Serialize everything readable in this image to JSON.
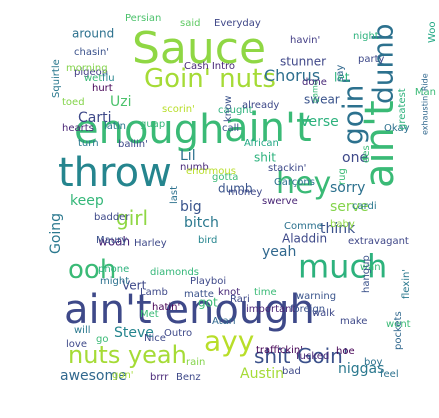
{
  "words": [
    {
      "t": "Sauce",
      "c": "#8fd744"
    },
    {
      "t": "enough",
      "c": "#3aba76"
    },
    {
      "t": "ain't",
      "c": "#3aba76"
    },
    {
      "t": "ain't",
      "c": "#3aba76"
    },
    {
      "t": "ain't enough",
      "c": "#3e4989"
    },
    {
      "t": "throw",
      "c": "#25858e"
    },
    {
      "t": "much",
      "c": "#2db27d"
    },
    {
      "t": "hey",
      "c": "#3aba76"
    },
    {
      "t": "Goin' nuts",
      "c": "#a5db36"
    },
    {
      "t": "goin'",
      "c": "#2c718e"
    },
    {
      "t": "dumb",
      "c": "#2c718e"
    },
    {
      "t": "nuts yeah",
      "c": "#a5db36"
    },
    {
      "t": "ayy",
      "c": "#b8de29"
    },
    {
      "t": "shit Goin'",
      "c": "#3b518b"
    },
    {
      "t": "ooh",
      "c": "#3aba76"
    },
    {
      "t": "girl",
      "c": "#8fd744"
    },
    {
      "t": "Chorus",
      "c": "#2e6f8e"
    },
    {
      "t": "stunner",
      "c": "#3f4788"
    },
    {
      "t": "let",
      "c": "#2db27d"
    },
    {
      "t": "swear",
      "c": "#3a548c"
    },
    {
      "t": "Uzi",
      "c": "#4cc26c"
    },
    {
      "t": "Carti",
      "c": "#3e4989"
    },
    {
      "t": "Verse",
      "c": "#2db27d"
    },
    {
      "t": "Lil",
      "c": "#2c718e"
    },
    {
      "t": "one",
      "c": "#3e4989"
    },
    {
      "t": "sorry",
      "c": "#2c718e"
    },
    {
      "t": "serve",
      "c": "#84d44b"
    },
    {
      "t": "think",
      "c": "#3b528b"
    },
    {
      "t": "yeah",
      "c": "#31688e"
    },
    {
      "t": "bitch",
      "c": "#2a788e"
    },
    {
      "t": "big",
      "c": "#3a548c"
    },
    {
      "t": "keep",
      "c": "#35b779"
    },
    {
      "t": "Going",
      "c": "#2a788e"
    },
    {
      "t": "woah",
      "c": "#482475"
    },
    {
      "t": "Vert",
      "c": "#3e4989"
    },
    {
      "t": "got",
      "c": "#3aba76"
    },
    {
      "t": "Steve",
      "c": "#25858e"
    },
    {
      "t": "Austin",
      "c": "#a5db36"
    },
    {
      "t": "niggas",
      "c": "#2a788e"
    },
    {
      "t": "awesome",
      "c": "#31688e"
    },
    {
      "t": "around",
      "c": "#2c718e"
    },
    {
      "t": "Persian",
      "c": "#4cc26c"
    },
    {
      "t": "said",
      "c": "#5ec962"
    },
    {
      "t": "Everyday",
      "c": "#3f4788"
    },
    {
      "t": "chasin'",
      "c": "#3b528b"
    },
    {
      "t": "havin'",
      "c": "#433e85"
    },
    {
      "t": "night",
      "c": "#2db27d"
    },
    {
      "t": "party",
      "c": "#3e4989"
    },
    {
      "t": "Woo",
      "c": "#22a884"
    },
    {
      "t": "pigeon",
      "c": "#433e85"
    },
    {
      "t": "flu",
      "c": "#25858e"
    },
    {
      "t": "Cash Intro",
      "c": "#482878"
    },
    {
      "t": "wet",
      "c": "#3aba76"
    },
    {
      "t": "hurt",
      "c": "#440154"
    },
    {
      "t": "morning",
      "c": "#84d44b"
    },
    {
      "t": "toed",
      "c": "#84d44b"
    },
    {
      "t": "Squirtle",
      "c": "#2a788e"
    },
    {
      "t": "hearts",
      "c": "#482475"
    },
    {
      "t": "latin",
      "c": "#2a788e"
    },
    {
      "t": "guap",
      "c": "#35b779"
    },
    {
      "t": "scorin'",
      "c": "#b8de29"
    },
    {
      "t": "caught",
      "c": "#2db27d"
    },
    {
      "t": "already",
      "c": "#3e4989"
    },
    {
      "t": "know",
      "c": "#3b528b"
    },
    {
      "t": "turn",
      "c": "#2a788e"
    },
    {
      "t": "ballin'",
      "c": "#3e4989"
    },
    {
      "t": "African",
      "c": "#22a884"
    },
    {
      "t": "shit",
      "c": "#2db27d"
    },
    {
      "t": "stackin'",
      "c": "#3e4989"
    },
    {
      "t": "call",
      "c": "#3b528b"
    },
    {
      "t": "Okay",
      "c": "#2c718e"
    },
    {
      "t": "Man",
      "c": "#3aba76"
    },
    {
      "t": "game",
      "c": "#3aba76"
    },
    {
      "t": "greatest",
      "c": "#2db27d"
    },
    {
      "t": "exhaustin' Ride",
      "c": "#31688e"
    },
    {
      "t": "done",
      "c": "#482878"
    },
    {
      "t": "say",
      "c": "#31688e"
    },
    {
      "t": "des",
      "c": "#3aba76"
    },
    {
      "t": "numb",
      "c": "#482878"
    },
    {
      "t": "gotta",
      "c": "#3aba76"
    },
    {
      "t": "enormous",
      "c": "#b8de29"
    },
    {
      "t": "Garçons",
      "c": "#2c718e"
    },
    {
      "t": "dumb",
      "c": "#3a548c"
    },
    {
      "t": "badder",
      "c": "#3e4989"
    },
    {
      "t": "Maury",
      "c": "#3b528b"
    },
    {
      "t": "Harley",
      "c": "#3e4989"
    },
    {
      "t": "bird",
      "c": "#25858e"
    },
    {
      "t": "money",
      "c": "#3e4989"
    },
    {
      "t": "swerve",
      "c": "#482475"
    },
    {
      "t": "cardi",
      "c": "#2a788e"
    },
    {
      "t": "rug",
      "c": "#3aba76"
    },
    {
      "t": "Comme",
      "c": "#2c718e"
    },
    {
      "t": "baby",
      "c": "#8fd744"
    },
    {
      "t": "Aladdin",
      "c": "#3e4989"
    },
    {
      "t": "extravagant",
      "c": "#3f4788"
    },
    {
      "t": "last",
      "c": "#2c718e"
    },
    {
      "t": "phone",
      "c": "#2db27d"
    },
    {
      "t": "diamonds",
      "c": "#35b779"
    },
    {
      "t": "Lamb",
      "c": "#3e4989"
    },
    {
      "t": "matte",
      "c": "#3b528b"
    },
    {
      "t": "knot",
      "c": "#482878"
    },
    {
      "t": "time",
      "c": "#3aba76"
    },
    {
      "t": "warning",
      "c": "#3a548c"
    },
    {
      "t": "wan'",
      "c": "#3aba76"
    },
    {
      "t": "flexin'",
      "c": "#2a788e"
    },
    {
      "t": "hangup",
      "c": "#3b528b"
    },
    {
      "t": "might",
      "c": "#2c718e"
    },
    {
      "t": "hatin'",
      "c": "#440154"
    },
    {
      "t": "Playboi",
      "c": "#3e4989"
    },
    {
      "t": "Met",
      "c": "#3aba76"
    },
    {
      "t": "Rari",
      "c": "#3e4989"
    },
    {
      "t": "important",
      "c": "#482475"
    },
    {
      "t": "Atari",
      "c": "#31688e"
    },
    {
      "t": "foreign",
      "c": "#3b528b"
    },
    {
      "t": "walk",
      "c": "#3e4989"
    },
    {
      "t": "make",
      "c": "#3e4989"
    },
    {
      "t": "went",
      "c": "#3aba76"
    },
    {
      "t": "Outro",
      "c": "#3e4989"
    },
    {
      "t": "will",
      "c": "#2a788e"
    },
    {
      "t": "Nice",
      "c": "#3e4989"
    },
    {
      "t": "pockets",
      "c": "#31688e"
    },
    {
      "t": "go",
      "c": "#3aba76"
    },
    {
      "t": "love",
      "c": "#3e4989"
    },
    {
      "t": "traffickin'",
      "c": "#440154"
    },
    {
      "t": "fucked",
      "c": "#482475"
    },
    {
      "t": "hoe",
      "c": "#440154"
    },
    {
      "t": "boy",
      "c": "#2c718e"
    },
    {
      "t": "rain",
      "c": "#84d44b"
    },
    {
      "t": "gon'",
      "c": "#a5db36"
    },
    {
      "t": "brrr",
      "c": "#482878"
    },
    {
      "t": "Benz",
      "c": "#3e4989"
    },
    {
      "t": "bad",
      "c": "#3e4989"
    },
    {
      "t": "feel",
      "c": "#2c718e"
    }
  ]
}
